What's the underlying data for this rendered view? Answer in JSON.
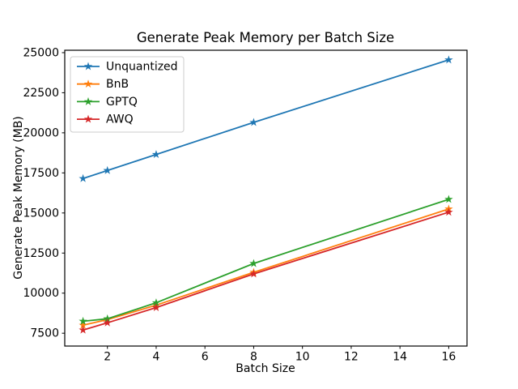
{
  "figure": {
    "background_color": "#ffffff",
    "plot_border_color": "#000000",
    "legend_border_color": "#cccccc"
  },
  "chart_data": {
    "type": "line",
    "title": "Generate Peak Memory per Batch Size",
    "xlabel": "Batch Size",
    "ylabel": "Generate Peak Memory (MB)",
    "x": [
      1,
      2,
      4,
      8,
      16
    ],
    "series": [
      {
        "name": "Unquantized",
        "color": "#1f77b4",
        "marker": "star",
        "values": [
          17150,
          17650,
          18650,
          20650,
          24550
        ]
      },
      {
        "name": "BnB",
        "color": "#ff7f0e",
        "marker": "star",
        "values": [
          8000,
          8350,
          9250,
          11300,
          15250
        ]
      },
      {
        "name": "GPTQ",
        "color": "#2ca02c",
        "marker": "star",
        "values": [
          8250,
          8400,
          9400,
          11850,
          15850
        ]
      },
      {
        "name": "AWQ",
        "color": "#d62728",
        "marker": "star",
        "values": [
          7700,
          8150,
          9100,
          11200,
          15050
        ]
      }
    ],
    "xlim": [
      0.25,
      16.75
    ],
    "ylim": [
      6700,
      25150
    ],
    "xticks": [
      2,
      4,
      6,
      8,
      10,
      12,
      14,
      16
    ],
    "yticks": [
      7500,
      10000,
      12500,
      15000,
      17500,
      20000,
      22500,
      25000
    ],
    "grid": false,
    "legend_position": "upper left"
  }
}
